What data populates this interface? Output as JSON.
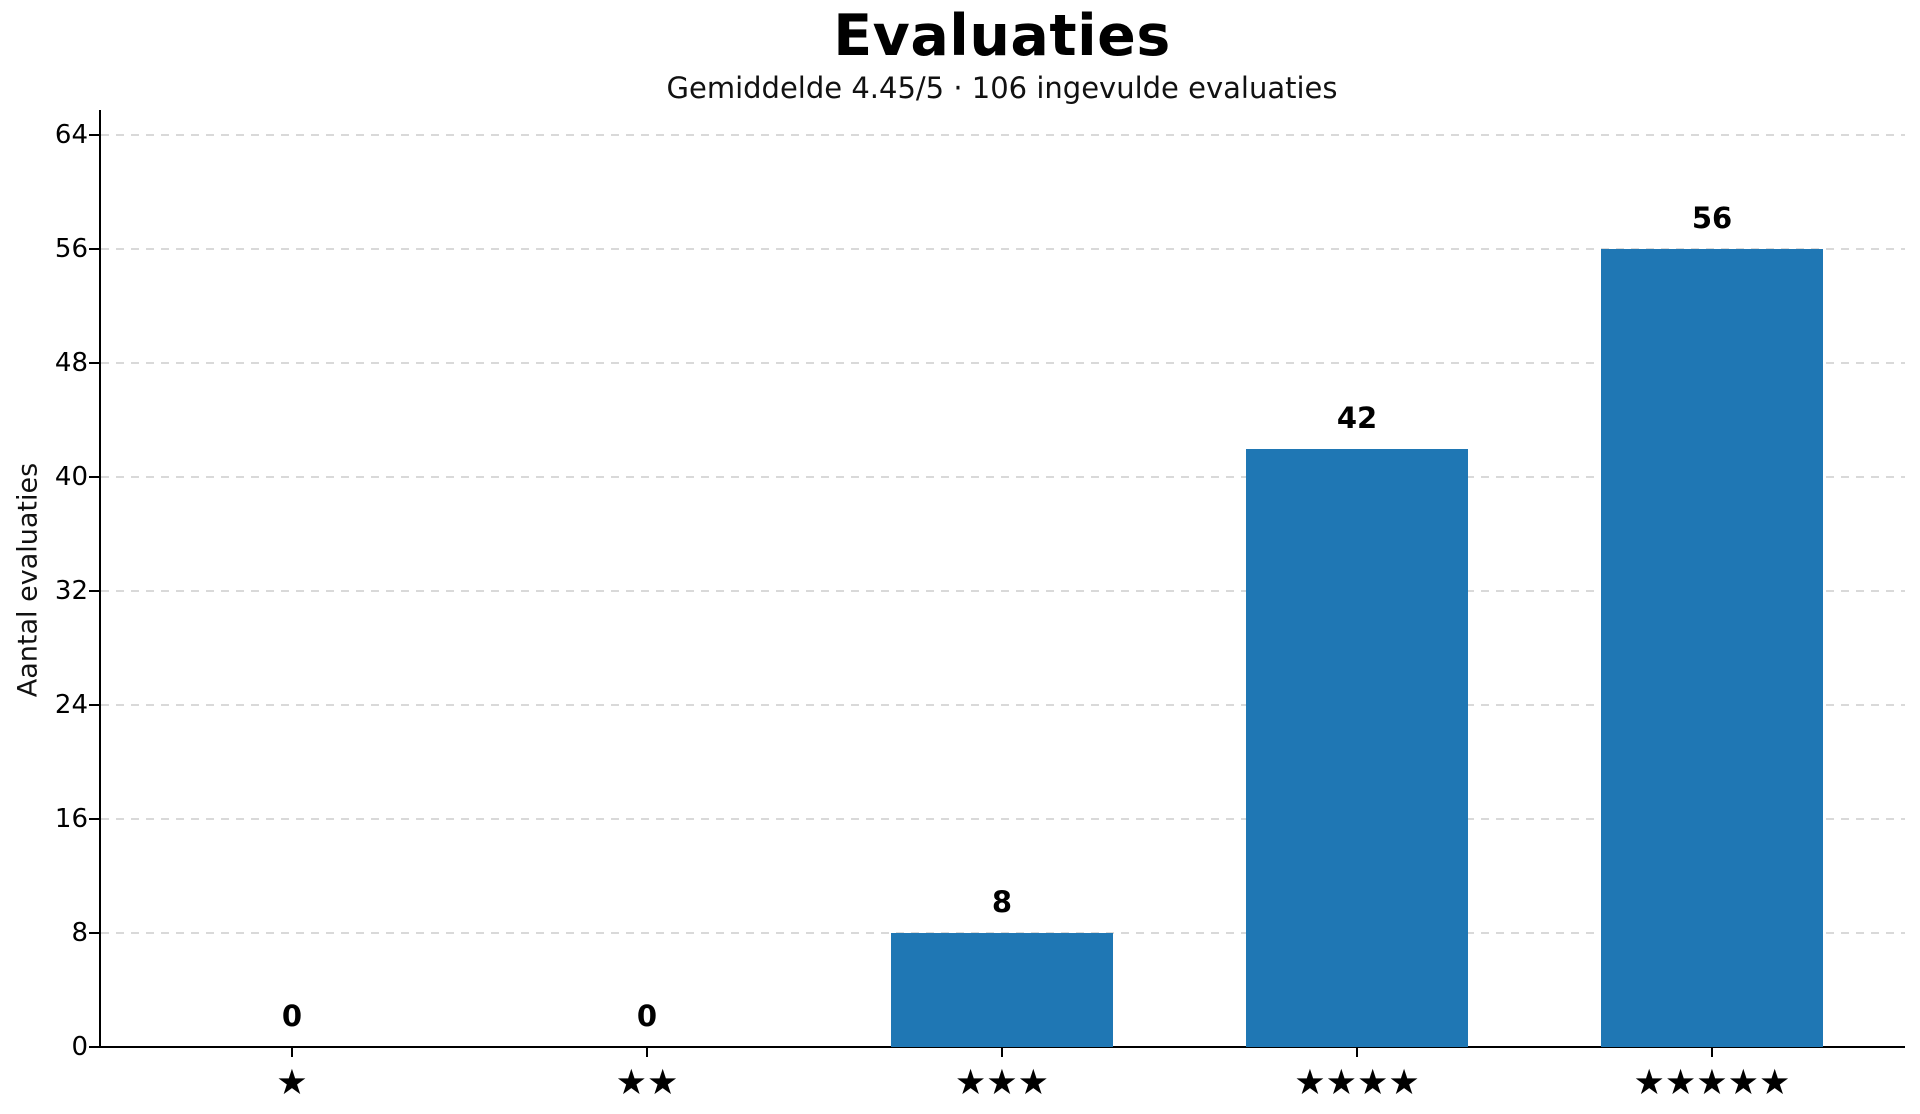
{
  "chart_data": {
    "type": "bar",
    "title": "Evaluaties",
    "subtitle": "Gemiddelde 4.45/5 · 106 ingevulde evaluaties",
    "ylabel": "Aantal evaluaties",
    "xlabel": "",
    "categories": [
      "★",
      "★★",
      "★★★",
      "★★★★",
      "★★★★★"
    ],
    "values": [
      0,
      0,
      8,
      42,
      56
    ],
    "value_labels": [
      "0",
      "0",
      "8",
      "42",
      "56"
    ],
    "yticks": [
      0,
      8,
      16,
      24,
      32,
      40,
      48,
      56,
      64
    ],
    "ylim": [
      0,
      65.75
    ],
    "grid": {
      "axis": "y",
      "style": "dashed",
      "color": "#d9d9d9"
    },
    "legend_position": "none",
    "colors": {
      "bar": "#1f77b4",
      "text": "#000000",
      "spine": "#000000",
      "background": "#ffffff"
    },
    "stats": {
      "average_rating": "4.45",
      "max_rating": "5",
      "total_evaluations": "106"
    }
  }
}
